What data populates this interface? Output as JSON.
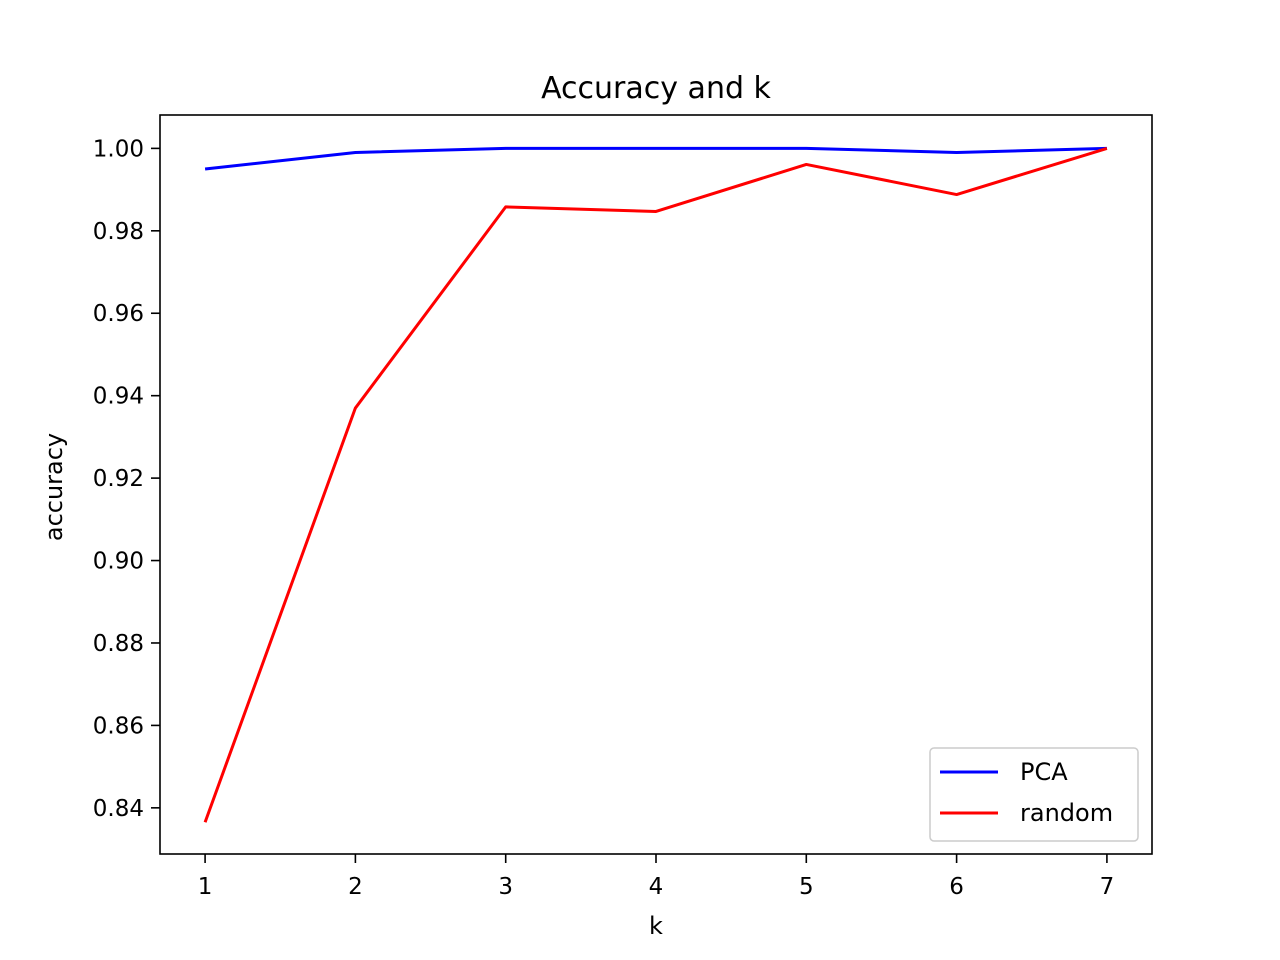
{
  "chart_data": {
    "type": "line",
    "title": "Accuracy and k",
    "xlabel": "k",
    "ylabel": "accuracy",
    "x": [
      1,
      2,
      3,
      4,
      5,
      6,
      7
    ],
    "xticks": [
      "1",
      "2",
      "3",
      "4",
      "5",
      "6",
      "7"
    ],
    "yticks": [
      "0.84",
      "0.86",
      "0.88",
      "0.90",
      "0.92",
      "0.94",
      "0.96",
      "0.98",
      "1.00"
    ],
    "xlim": [
      0.7,
      7.3
    ],
    "ylim": [
      0.8288,
      1.0081
    ],
    "grid": false,
    "legend_position": "lower-right",
    "series": [
      {
        "name": "PCA",
        "color": "#0000ff",
        "values": [
          0.995,
          0.999,
          1.0,
          1.0,
          1.0,
          0.999,
          1.0
        ]
      },
      {
        "name": "random",
        "color": "#ff0000",
        "values": [
          0.8365,
          0.937,
          0.9858,
          0.9847,
          0.9961,
          0.9888,
          1.0
        ]
      }
    ]
  }
}
